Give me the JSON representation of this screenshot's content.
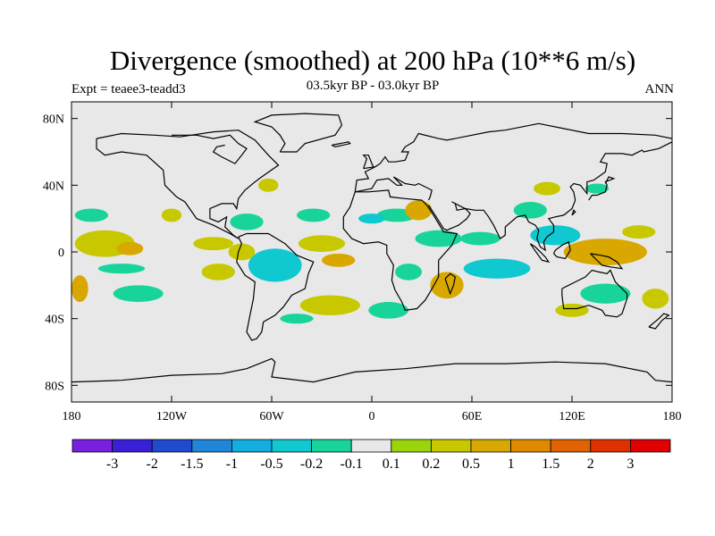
{
  "title": "Divergence (smoothed) at 200 hPa (10**6 m/s)",
  "subtitle": "03.5kyr BP - 03.0kyr BP",
  "left_label": "Expt = teaee3-teadd3",
  "right_label": "ANN",
  "colors": {
    "ocean_land_bg": "#e8e8e8",
    "coast": "#000000"
  },
  "chart_data": {
    "type": "heatmap",
    "projection": "cylindrical-equidistant",
    "lon_range": [
      -180,
      180
    ],
    "lat_range": [
      -90,
      90
    ],
    "lon_ticks": [
      {
        "value": -180,
        "label": "180"
      },
      {
        "value": -120,
        "label": "120W"
      },
      {
        "value": -60,
        "label": "60W"
      },
      {
        "value": 0,
        "label": "0"
      },
      {
        "value": 60,
        "label": "60E"
      },
      {
        "value": 120,
        "label": "120E"
      },
      {
        "value": 180,
        "label": "180"
      }
    ],
    "lat_ticks": [
      {
        "value": 80,
        "label": "80N"
      },
      {
        "value": 40,
        "label": "40N"
      },
      {
        "value": 0,
        "label": "0"
      },
      {
        "value": -40,
        "label": "40S"
      },
      {
        "value": -80,
        "label": "80S"
      }
    ],
    "colorbar": {
      "colors": [
        "#7a1fdc",
        "#3a1fd8",
        "#1f4ccf",
        "#1f86d8",
        "#12aee0",
        "#10c8d0",
        "#18d49a",
        "#e8e8e8",
        "#9ad40a",
        "#c8c800",
        "#d8a800",
        "#e08a00",
        "#e06200",
        "#e03000",
        "#e00000"
      ],
      "labels": [
        "-3",
        "-2",
        "-1.5",
        "-1",
        "-0.5",
        "-0.2",
        "-0.1",
        "0.1",
        "0.2",
        "0.5",
        "1",
        "1.5",
        "2",
        "3"
      ]
    },
    "regions": [
      {
        "lon": -160,
        "lat": 5,
        "rx": 18,
        "ry": 8,
        "level": "0.2"
      },
      {
        "lon": -145,
        "lat": 2,
        "rx": 8,
        "ry": 4,
        "level": "0.5"
      },
      {
        "lon": -168,
        "lat": 22,
        "rx": 10,
        "ry": 4,
        "level": "-0.1"
      },
      {
        "lon": -150,
        "lat": -10,
        "rx": 14,
        "ry": 3,
        "level": "-0.1"
      },
      {
        "lon": -120,
        "lat": 22,
        "rx": 6,
        "ry": 4,
        "level": "0.2"
      },
      {
        "lon": -95,
        "lat": 5,
        "rx": 12,
        "ry": 4,
        "level": "0.2"
      },
      {
        "lon": -75,
        "lat": 18,
        "rx": 10,
        "ry": 5,
        "level": "-0.1"
      },
      {
        "lon": -58,
        "lat": -8,
        "rx": 16,
        "ry": 10,
        "level": "-0.2"
      },
      {
        "lon": -78,
        "lat": 0,
        "rx": 8,
        "ry": 5,
        "level": "0.2"
      },
      {
        "lon": -92,
        "lat": -12,
        "rx": 10,
        "ry": 5,
        "level": "0.2"
      },
      {
        "lon": -62,
        "lat": 40,
        "rx": 6,
        "ry": 4,
        "level": "0.2"
      },
      {
        "lon": -30,
        "lat": 5,
        "rx": 14,
        "ry": 5,
        "level": "0.2"
      },
      {
        "lon": -20,
        "lat": -5,
        "rx": 10,
        "ry": 4,
        "level": "0.5"
      },
      {
        "lon": -35,
        "lat": 22,
        "rx": 10,
        "ry": 4,
        "level": "-0.1"
      },
      {
        "lon": -25,
        "lat": -32,
        "rx": 18,
        "ry": 6,
        "level": "0.2"
      },
      {
        "lon": -45,
        "lat": -40,
        "rx": 10,
        "ry": 3,
        "level": "-0.1"
      },
      {
        "lon": -140,
        "lat": -25,
        "rx": 15,
        "ry": 5,
        "level": "-0.1"
      },
      {
        "lon": -175,
        "lat": -22,
        "rx": 5,
        "ry": 8,
        "level": "0.5"
      },
      {
        "lon": 15,
        "lat": 22,
        "rx": 12,
        "ry": 4,
        "level": "-0.1"
      },
      {
        "lon": 28,
        "lat": 25,
        "rx": 8,
        "ry": 6,
        "level": "0.5"
      },
      {
        "lon": 40,
        "lat": 8,
        "rx": 14,
        "ry": 5,
        "level": "-0.1"
      },
      {
        "lon": 45,
        "lat": -20,
        "rx": 10,
        "ry": 8,
        "level": "0.5"
      },
      {
        "lon": 22,
        "lat": -12,
        "rx": 8,
        "ry": 5,
        "level": "-0.1"
      },
      {
        "lon": 65,
        "lat": 8,
        "rx": 12,
        "ry": 4,
        "level": "-0.1"
      },
      {
        "lon": 75,
        "lat": -10,
        "rx": 20,
        "ry": 6,
        "level": "-0.2"
      },
      {
        "lon": 95,
        "lat": 25,
        "rx": 10,
        "ry": 5,
        "level": "-0.1"
      },
      {
        "lon": 110,
        "lat": 10,
        "rx": 15,
        "ry": 6,
        "level": "-0.2"
      },
      {
        "lon": 140,
        "lat": 0,
        "rx": 25,
        "ry": 8,
        "level": "0.5"
      },
      {
        "lon": 160,
        "lat": 12,
        "rx": 10,
        "ry": 4,
        "level": "0.2"
      },
      {
        "lon": 140,
        "lat": -25,
        "rx": 15,
        "ry": 6,
        "level": "-0.1"
      },
      {
        "lon": 120,
        "lat": -35,
        "rx": 10,
        "ry": 4,
        "level": "0.2"
      },
      {
        "lon": 170,
        "lat": -28,
        "rx": 8,
        "ry": 6,
        "level": "0.2"
      },
      {
        "lon": 105,
        "lat": 38,
        "rx": 8,
        "ry": 4,
        "level": "0.2"
      },
      {
        "lon": 135,
        "lat": 38,
        "rx": 7,
        "ry": 3,
        "level": "-0.1"
      },
      {
        "lon": 10,
        "lat": -35,
        "rx": 12,
        "ry": 5,
        "level": "-0.1"
      },
      {
        "lon": 0,
        "lat": 20,
        "rx": 8,
        "ry": 3,
        "level": "-0.2"
      }
    ]
  }
}
